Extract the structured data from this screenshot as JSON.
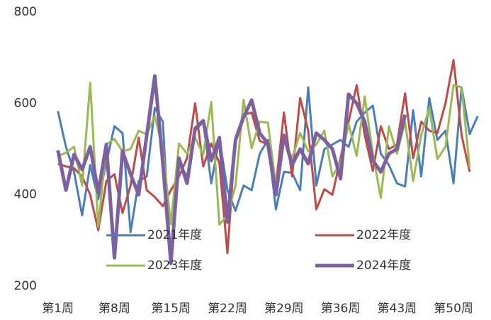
{
  "chart_data": {
    "type": "line",
    "categories": [
      "第1周",
      null,
      null,
      null,
      null,
      null,
      null,
      "第8周",
      null,
      null,
      null,
      null,
      null,
      null,
      "第15周",
      null,
      null,
      null,
      null,
      null,
      null,
      "第22周",
      null,
      null,
      null,
      null,
      null,
      null,
      "第29周",
      null,
      null,
      null,
      null,
      null,
      null,
      "第36周",
      null,
      null,
      null,
      null,
      null,
      null,
      "第43周",
      null,
      null,
      null,
      null,
      null,
      null,
      "第50周",
      null,
      null,
      null
    ],
    "ylim": [
      200,
      800
    ],
    "yticks": [
      200,
      400,
      600,
      800
    ],
    "series": [
      {
        "name": "2021年度",
        "color": "#4a7ebb",
        "values": [
          583,
          505,
          450,
          355,
          465,
          390,
          470,
          550,
          535,
          318,
          430,
          440,
          590,
          560,
          250,
          470,
          440,
          540,
          560,
          425,
          525,
          410,
          365,
          420,
          410,
          490,
          520,
          368,
          450,
          448,
          410,
          635,
          420,
          500,
          510,
          520,
          505,
          560,
          580,
          595,
          490,
          465,
          425,
          418,
          585,
          440,
          612,
          520,
          540,
          425,
          635,
          533,
          572
        ]
      },
      {
        "name": "2022年度",
        "color": "#be4b48",
        "values": [
          468,
          462,
          458,
          440,
          400,
          322,
          430,
          445,
          360,
          420,
          525,
          410,
          395,
          375,
          410,
          440,
          480,
          600,
          462,
          512,
          470,
          272,
          525,
          575,
          580,
          518,
          510,
          420,
          580,
          440,
          612,
          540,
          368,
          412,
          400,
          480,
          560,
          640,
          530,
          452,
          550,
          500,
          510,
          622,
          480,
          560,
          540,
          535,
          600,
          695,
          530,
          450,
          null
        ]
      },
      {
        "name": "2023年度",
        "color": "#98b954",
        "values": [
          485,
          492,
          505,
          420,
          645,
          330,
          510,
          522,
          495,
          500,
          540,
          532,
          572,
          500,
          335,
          512,
          490,
          525,
          488,
          603,
          335,
          355,
          420,
          608,
          502,
          560,
          558,
          420,
          520,
          480,
          535,
          495,
          510,
          540,
          440,
          470,
          555,
          485,
          615,
          490,
          393,
          550,
          490,
          560,
          430,
          530,
          590,
          478,
          505,
          640,
          635,
          460,
          null
        ]
      },
      {
        "name": "2024年度",
        "color": "#7d60a0",
        "values": [
          497,
          410,
          488,
          455,
          505,
          405,
          510,
          262,
          495,
          445,
          400,
          530,
          660,
          470,
          250,
          480,
          425,
          545,
          562,
          475,
          525,
          340,
          520,
          570,
          607,
          535,
          512,
          400,
          530,
          465,
          500,
          468,
          535,
          520,
          500,
          435,
          620,
          600,
          560,
          475,
          450,
          490,
          500,
          575,
          null,
          null,
          null,
          null,
          null,
          null,
          null,
          null,
          null
        ]
      }
    ]
  }
}
